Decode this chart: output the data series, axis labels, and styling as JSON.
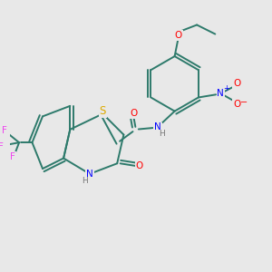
{
  "background_color": "#e8e8e8",
  "bond_color": "#2d7a6b",
  "atom_colors": {
    "O": "#ff0000",
    "N": "#0000ff",
    "S": "#ddaa00",
    "F": "#ee44ee",
    "H": "#777777",
    "C": "#2d7a6b"
  },
  "figsize": [
    3.0,
    3.0
  ],
  "dpi": 100
}
